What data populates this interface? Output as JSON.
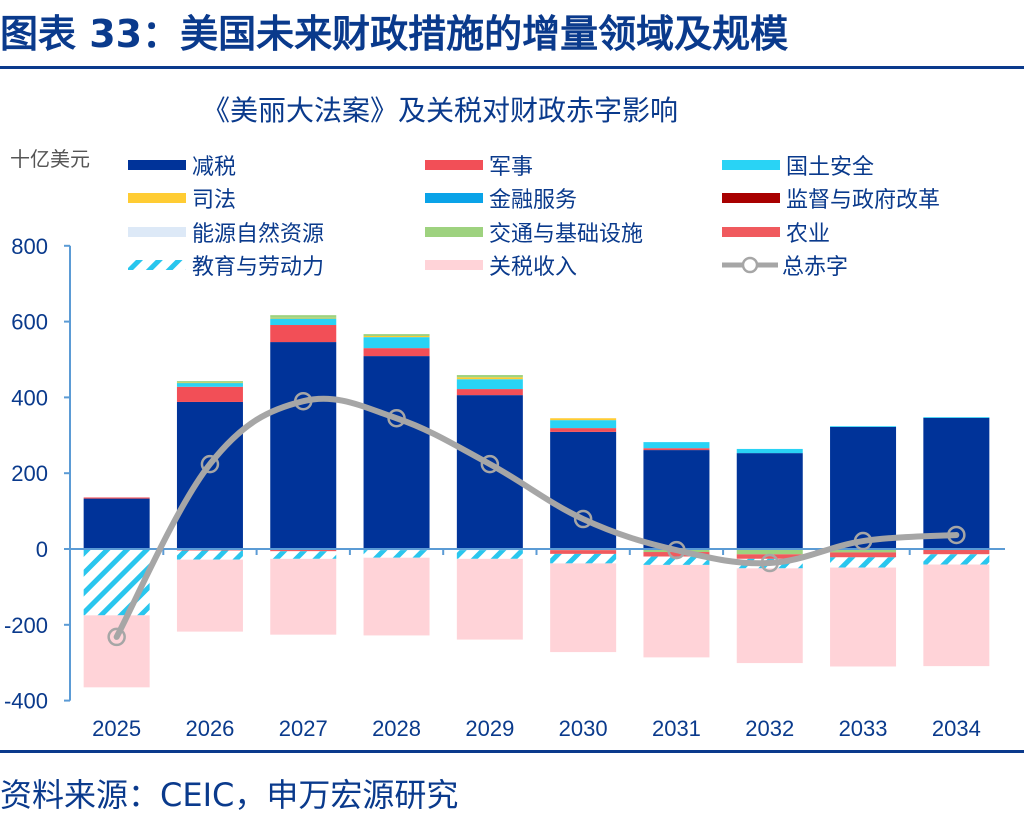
{
  "figure": {
    "title": "图表 33：美国未来财政措施的增量领域及规模",
    "source": "资料来源：CEIC，申万宏源研究"
  },
  "chart_data": {
    "type": "bar",
    "stacked": true,
    "title": "《美丽大法案》及关税对财政赤字影响",
    "unit_label": "十亿美元",
    "xlabel": "",
    "ylabel": "十亿美元",
    "ylim": [
      -400,
      800
    ],
    "yticks": [
      800,
      600,
      400,
      200,
      0,
      -200,
      -400
    ],
    "grid": false,
    "legend_position": "top",
    "categories": [
      "2025",
      "2026",
      "2027",
      "2028",
      "2029",
      "2030",
      "2031",
      "2032",
      "2033",
      "2034"
    ],
    "series": [
      {
        "name": "减税",
        "color": "#003399",
        "pattern": "solid",
        "values": [
          133,
          388,
          546,
          509,
          406,
          309,
          261,
          253,
          322,
          346
        ]
      },
      {
        "name": "军事",
        "color": "#f24f57",
        "pattern": "solid",
        "values": [
          3,
          40,
          45,
          21,
          16,
          10,
          5,
          0,
          0,
          0
        ]
      },
      {
        "name": "国土安全",
        "color": "#29d3f5",
        "pattern": "solid",
        "values": [
          0,
          10,
          17,
          29,
          26,
          21,
          16,
          11,
          2,
          2
        ]
      },
      {
        "name": "司法",
        "color": "#ffcc33",
        "pattern": "solid",
        "values": [
          0,
          1,
          2,
          3,
          5,
          5,
          0,
          0,
          0,
          0
        ]
      },
      {
        "name": "金融服务",
        "color": "#0aa3e8",
        "pattern": "solid",
        "values": [
          0,
          0,
          0,
          0,
          0,
          0,
          0,
          0,
          0,
          0
        ]
      },
      {
        "name": "监督与政府改革",
        "color": "#a80000",
        "pattern": "solid",
        "values": [
          0,
          0,
          0,
          0,
          0,
          0,
          0,
          0,
          0,
          0
        ]
      },
      {
        "name": "能源自然资源",
        "color": "#dde9f7",
        "pattern": "solid",
        "values": [
          0,
          0,
          0,
          0,
          0,
          0,
          0,
          0,
          0,
          0
        ]
      },
      {
        "name": "交通与基础设施",
        "color": "#9ed27f",
        "pattern": "solid",
        "values": [
          0,
          4,
          7,
          5,
          6,
          -3,
          -8,
          -14,
          -9,
          -2
        ]
      },
      {
        "name": "农业",
        "color": "#f05a5e",
        "pattern": "solid",
        "values": [
          0,
          -4,
          -6,
          -3,
          -3,
          -10,
          -12,
          -12,
          -13,
          -12
        ]
      },
      {
        "name": "教育与劳动力",
        "color": "#29c6ee",
        "pattern": "hatch",
        "values": [
          -175,
          -24,
          -20,
          -20,
          -23,
          -25,
          -22,
          -25,
          -27,
          -27
        ]
      },
      {
        "name": "关税收入",
        "color": "#ffd3d8",
        "pattern": "solid",
        "values": [
          -190,
          -190,
          -200,
          -205,
          -213,
          -234,
          -244,
          -250,
          -261,
          -268
        ]
      }
    ],
    "line_series": {
      "name": "总赤字",
      "color": "#a6a6a6",
      "values": [
        -232,
        224,
        390,
        345,
        224,
        79,
        -3,
        -37,
        21,
        37
      ]
    }
  }
}
